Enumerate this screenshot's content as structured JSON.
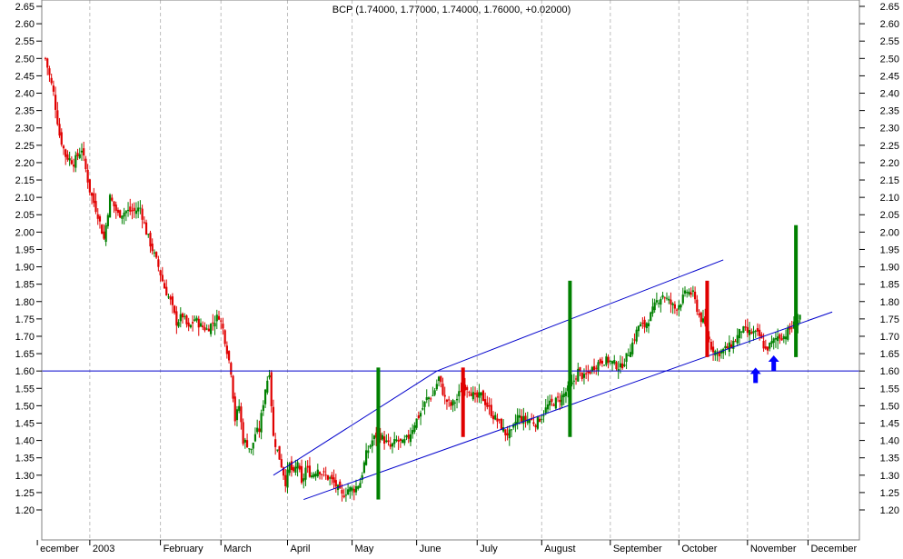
{
  "chart_data": {
    "type": "candlestick",
    "title": "BCP (1.74000, 1.77000, 1.74000, 1.76000, +0.02000)",
    "ylim": [
      1.17,
      2.67
    ],
    "y_ticks": [
      "2.65",
      "2.60",
      "2.55",
      "2.50",
      "2.45",
      "2.40",
      "2.35",
      "2.30",
      "2.25",
      "2.20",
      "2.15",
      "2.10",
      "2.05",
      "2.00",
      "1.95",
      "1.90",
      "1.85",
      "1.80",
      "1.75",
      "1.70",
      "1.65",
      "1.60",
      "1.55",
      "1.50",
      "1.45",
      "1.40",
      "1.35",
      "1.30",
      "1.25",
      "1.20"
    ],
    "x_labels": [
      "ecember",
      "2003",
      "February",
      "March",
      "April",
      "May",
      "June",
      "July",
      "August",
      "September",
      "October",
      "November",
      "December"
    ],
    "grid": true,
    "up_color": "#008000",
    "down_color": "#e00000",
    "line_color": "#0000cc",
    "arrow_color": "#0000ff",
    "close_path": [
      [
        0,
        2.5
      ],
      [
        4,
        2.4
      ],
      [
        7,
        2.28
      ],
      [
        10,
        2.22
      ],
      [
        14,
        2.2
      ],
      [
        18,
        2.24
      ],
      [
        22,
        2.12
      ],
      [
        26,
        2.05
      ],
      [
        29,
        1.98
      ],
      [
        32,
        2.1
      ],
      [
        36,
        2.05
      ],
      [
        40,
        2.06
      ],
      [
        44,
        2.06
      ],
      [
        47,
        2.07
      ],
      [
        50,
        2.0
      ],
      [
        53,
        1.95
      ],
      [
        56,
        1.9
      ],
      [
        59,
        1.84
      ],
      [
        62,
        1.8
      ],
      [
        65,
        1.74
      ],
      [
        68,
        1.76
      ],
      [
        71,
        1.72
      ],
      [
        74,
        1.75
      ],
      [
        77,
        1.73
      ],
      [
        80,
        1.72
      ],
      [
        83,
        1.74
      ],
      [
        86,
        1.76
      ],
      [
        88,
        1.72
      ],
      [
        90,
        1.66
      ],
      [
        92,
        1.6
      ],
      [
        94,
        1.46
      ],
      [
        96,
        1.5
      ],
      [
        98,
        1.4
      ],
      [
        100,
        1.39
      ],
      [
        102,
        1.37
      ],
      [
        104,
        1.42
      ],
      [
        106,
        1.43
      ],
      [
        109,
        1.55
      ],
      [
        111,
        1.6
      ],
      [
        113,
        1.41
      ],
      [
        115,
        1.37
      ],
      [
        117,
        1.33
      ],
      [
        119,
        1.28
      ],
      [
        121,
        1.33
      ],
      [
        123,
        1.3
      ],
      [
        125,
        1.34
      ],
      [
        127,
        1.27
      ],
      [
        129,
        1.32
      ],
      [
        132,
        1.3
      ],
      [
        135,
        1.32
      ],
      [
        138,
        1.3
      ],
      [
        141,
        1.29
      ],
      [
        144,
        1.27
      ],
      [
        147,
        1.24
      ],
      [
        150,
        1.26
      ],
      [
        153,
        1.26
      ],
      [
        156,
        1.28
      ],
      [
        159,
        1.36
      ],
      [
        162,
        1.4
      ],
      [
        165,
        1.42
      ],
      [
        168,
        1.4
      ],
      [
        171,
        1.38
      ],
      [
        174,
        1.4
      ],
      [
        177,
        1.39
      ],
      [
        180,
        1.41
      ],
      [
        183,
        1.45
      ],
      [
        186,
        1.48
      ],
      [
        189,
        1.52
      ],
      [
        192,
        1.53
      ],
      [
        195,
        1.58
      ],
      [
        198,
        1.52
      ],
      [
        201,
        1.5
      ],
      [
        204,
        1.52
      ],
      [
        207,
        1.56
      ],
      [
        210,
        1.55
      ],
      [
        213,
        1.52
      ],
      [
        216,
        1.53
      ],
      [
        219,
        1.5
      ],
      [
        222,
        1.47
      ],
      [
        225,
        1.45
      ],
      [
        228,
        1.42
      ],
      [
        231,
        1.42
      ],
      [
        234,
        1.47
      ],
      [
        237,
        1.46
      ],
      [
        240,
        1.46
      ],
      [
        243,
        1.45
      ],
      [
        246,
        1.47
      ],
      [
        249,
        1.5
      ],
      [
        252,
        1.51
      ],
      [
        255,
        1.52
      ],
      [
        258,
        1.54
      ],
      [
        261,
        1.56
      ],
      [
        264,
        1.6
      ],
      [
        267,
        1.58
      ],
      [
        270,
        1.6
      ],
      [
        273,
        1.62
      ],
      [
        276,
        1.63
      ],
      [
        279,
        1.63
      ],
      [
        282,
        1.62
      ],
      [
        285,
        1.61
      ],
      [
        288,
        1.64
      ],
      [
        291,
        1.68
      ],
      [
        294,
        1.73
      ],
      [
        297,
        1.73
      ],
      [
        300,
        1.76
      ],
      [
        303,
        1.8
      ],
      [
        306,
        1.82
      ],
      [
        309,
        1.8
      ],
      [
        312,
        1.78
      ],
      [
        315,
        1.8
      ],
      [
        318,
        1.83
      ],
      [
        321,
        1.82
      ],
      [
        324,
        1.76
      ],
      [
        327,
        1.73
      ],
      [
        330,
        1.67
      ],
      [
        333,
        1.65
      ],
      [
        336,
        1.66
      ],
      [
        339,
        1.67
      ],
      [
        342,
        1.69
      ],
      [
        345,
        1.72
      ],
      [
        348,
        1.71
      ],
      [
        351,
        1.71
      ],
      [
        354,
        1.7
      ],
      [
        357,
        1.66
      ],
      [
        360,
        1.68
      ],
      [
        363,
        1.7
      ],
      [
        366,
        1.7
      ],
      [
        369,
        1.72
      ],
      [
        372,
        1.74
      ],
      [
        374,
        1.76
      ]
    ],
    "trend_lines": [
      {
        "from": [
          113,
          1.3
        ],
        "to": [
          194,
          1.6
        ]
      },
      {
        "from": [
          194,
          1.6
        ],
        "to": [
          336,
          1.92
        ]
      },
      {
        "from": [
          128,
          1.23
        ],
        "to": [
          390,
          1.77
        ]
      }
    ],
    "horizontal_line": 1.6,
    "bars": [
      {
        "x": 165,
        "low": 1.23,
        "high": 1.61,
        "color": "#008000"
      },
      {
        "x": 207,
        "low": 1.41,
        "high": 1.61,
        "color": "#e00000"
      },
      {
        "x": 260,
        "low": 1.41,
        "high": 1.86,
        "color": "#008000"
      },
      {
        "x": 328,
        "low": 1.64,
        "high": 1.86,
        "color": "#e00000"
      },
      {
        "x": 372,
        "low": 1.64,
        "high": 2.02,
        "color": "#008000"
      }
    ],
    "arrows": [
      {
        "x": 352,
        "y": 1.61
      },
      {
        "x": 361,
        "y": 1.645
      }
    ]
  }
}
